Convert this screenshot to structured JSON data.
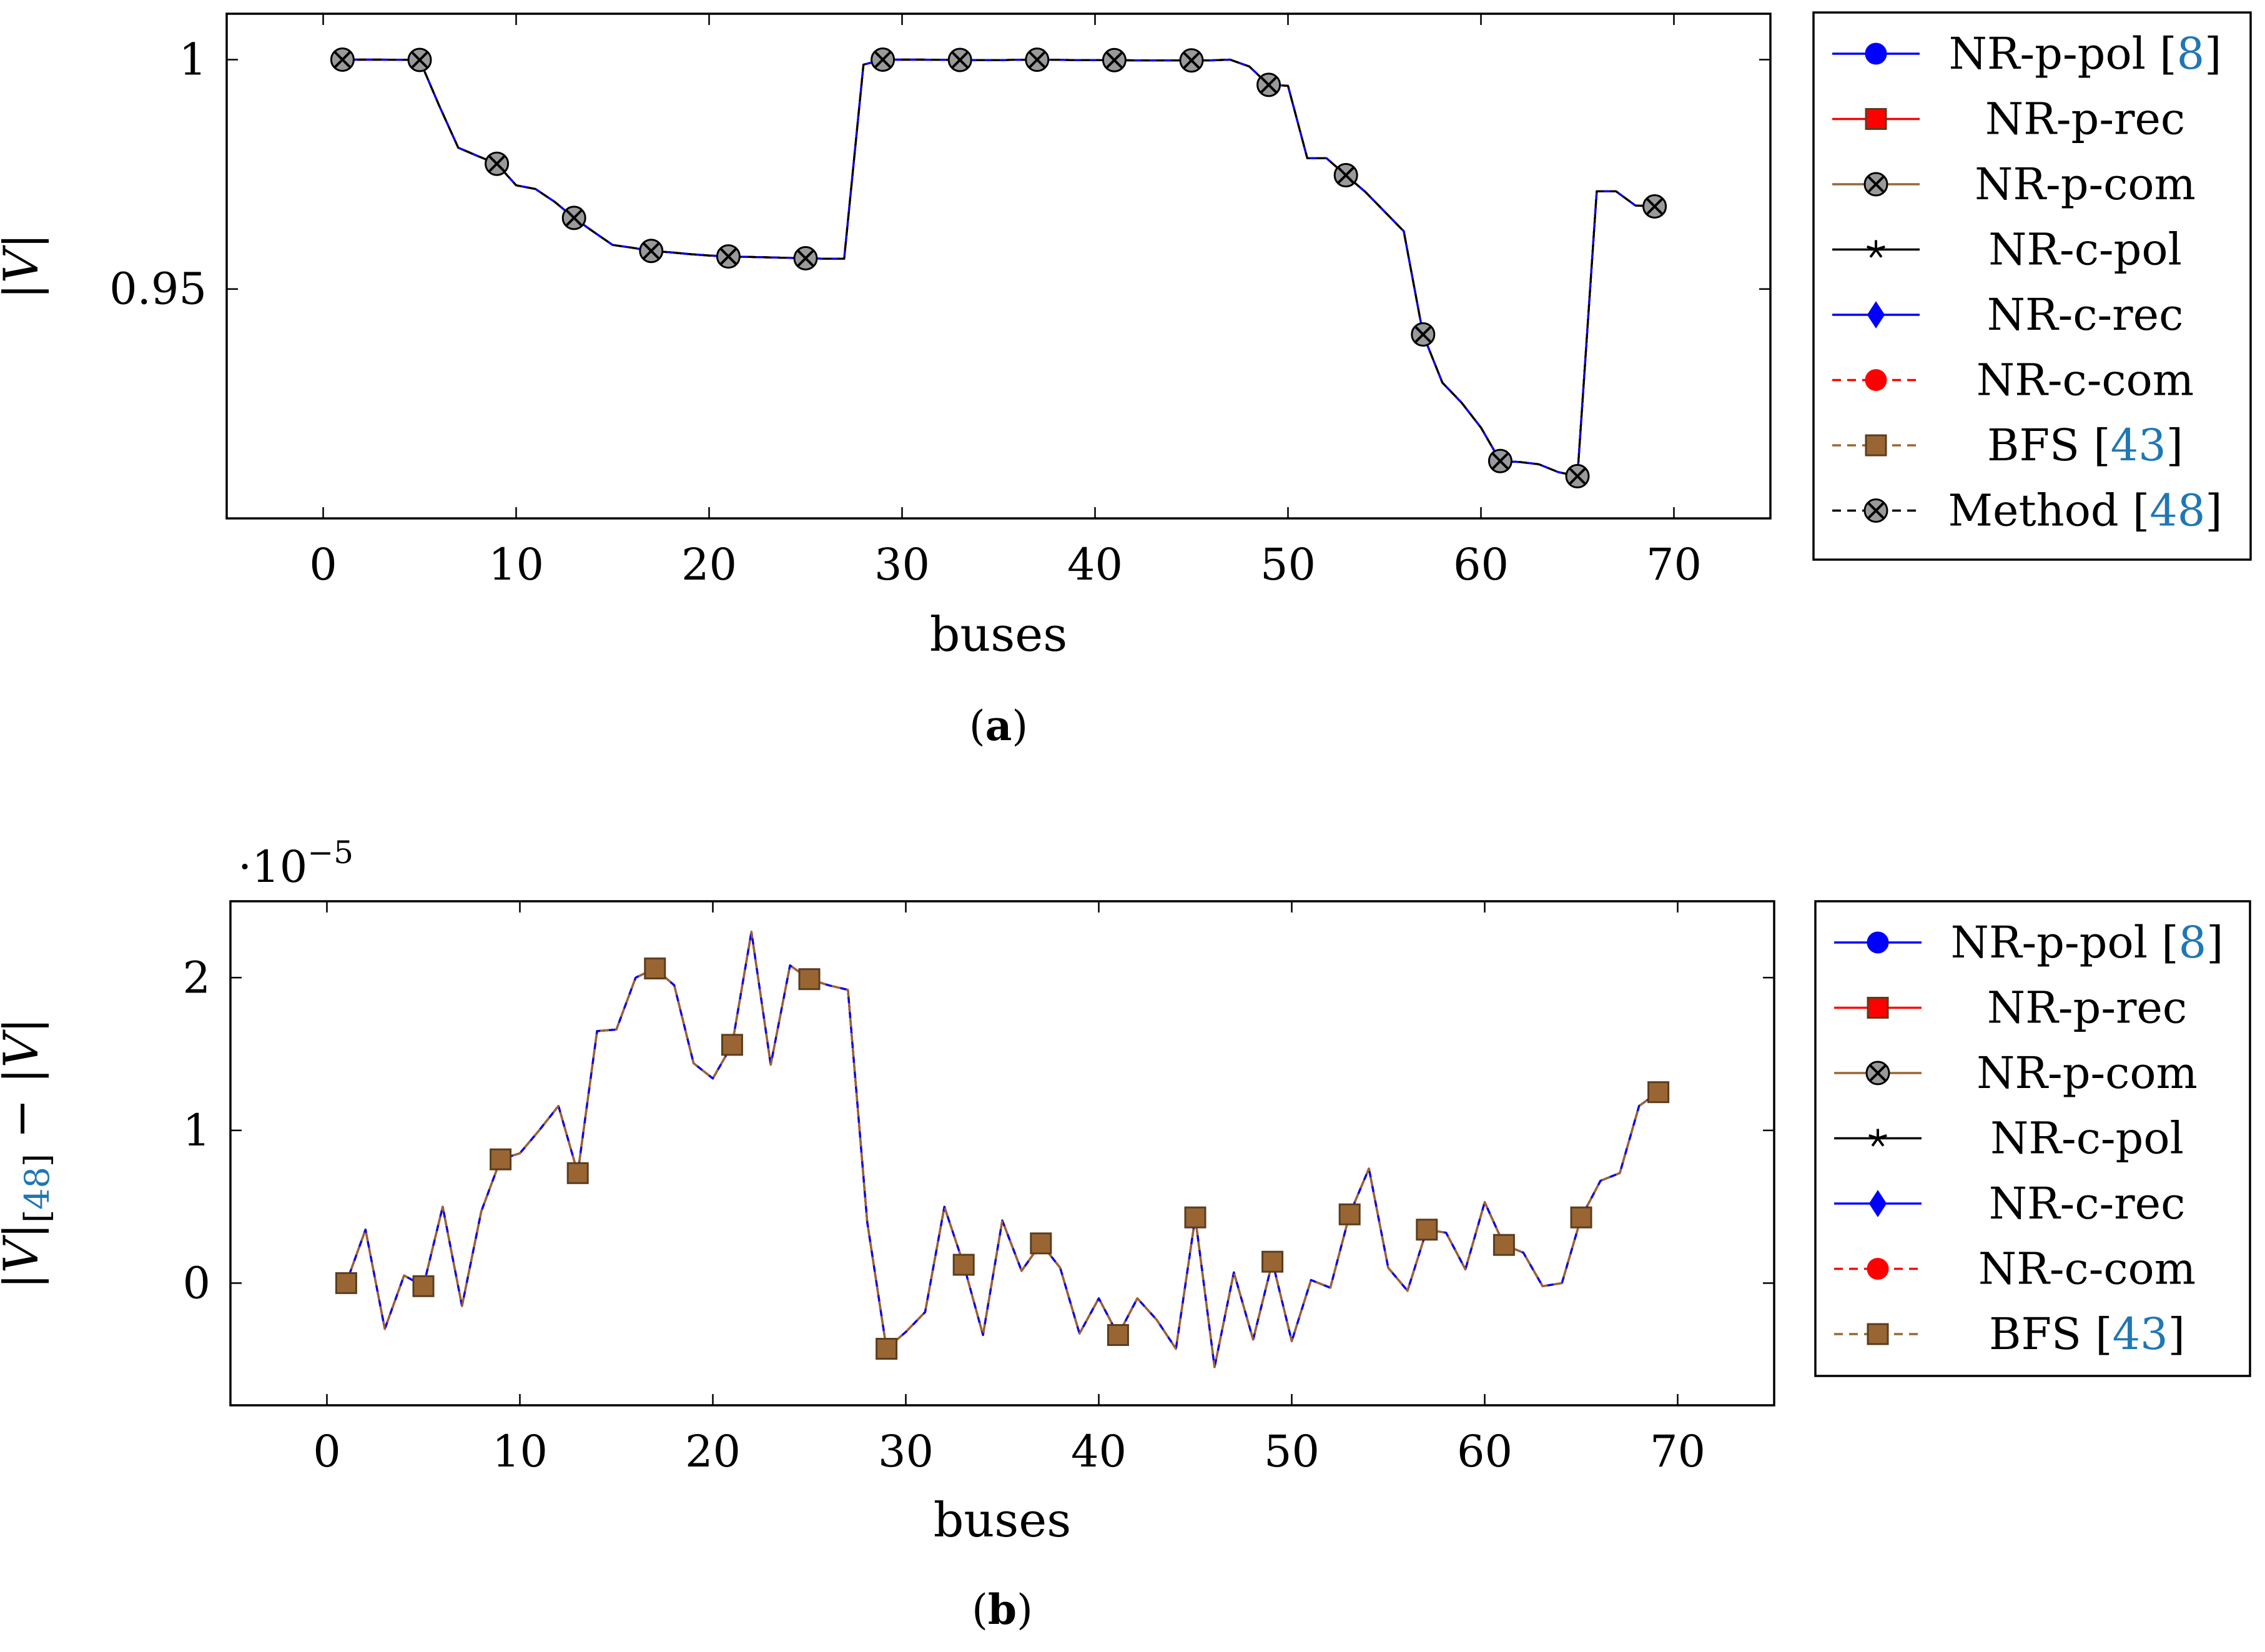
{
  "chart_data": [
    {
      "type": "line",
      "panel": "a",
      "caption_letter": "a",
      "xlabel": "buses",
      "ylabel": "|V|",
      "xlim": [
        -5,
        75
      ],
      "ylim": [
        0.9,
        1.01
      ],
      "xticks": [
        0,
        10,
        20,
        30,
        40,
        50,
        60,
        70
      ],
      "yticks": [
        0.95,
        1
      ],
      "ytick_labels": [
        "0.95",
        "1"
      ],
      "grid": false,
      "legend_position": "outside-right",
      "x": [
        1,
        2,
        3,
        4,
        5,
        6,
        7,
        8,
        9,
        10,
        11,
        12,
        13,
        14,
        15,
        16,
        17,
        18,
        19,
        20,
        21,
        22,
        23,
        24,
        25,
        26,
        27,
        28,
        29,
        30,
        31,
        32,
        33,
        34,
        35,
        36,
        37,
        38,
        39,
        40,
        41,
        42,
        43,
        44,
        45,
        46,
        47,
        48,
        49,
        50,
        51,
        52,
        53,
        54,
        55,
        56,
        57,
        58,
        59,
        60,
        61,
        62,
        63,
        64,
        65,
        66,
        67,
        68,
        69
      ],
      "y": [
        1.0,
        1.0,
        1.0,
        0.99997,
        0.99993,
        0.9901,
        0.9808,
        0.979,
        0.9773,
        0.9726,
        0.9718,
        0.969,
        0.9655,
        0.9625,
        0.9596,
        0.959,
        0.9583,
        0.958,
        0.9576,
        0.9573,
        0.9571,
        0.957,
        0.9569,
        0.9568,
        0.9567,
        0.9566,
        0.9566,
        0.9989,
        1.0,
        1.0,
        1.0,
        0.99995,
        0.99993,
        0.9999,
        0.99988,
        0.99996,
        0.99998,
        0.99995,
        0.9999,
        0.9999,
        0.99989,
        0.99985,
        0.99983,
        0.99983,
        0.99983,
        0.99984,
        1.0,
        0.9985,
        0.9945,
        0.9943,
        0.9785,
        0.9785,
        0.9748,
        0.9712,
        0.9669,
        0.9626,
        0.9401,
        0.9296,
        0.9252,
        0.9198,
        0.9125,
        0.9123,
        0.9118,
        0.9101,
        0.9092,
        0.9713,
        0.9713,
        0.9682,
        0.968
      ],
      "series": [
        {
          "name": "NR-p-pol",
          "ref": "8",
          "color": "#0000ff",
          "dash": "solid",
          "marker": "circle"
        },
        {
          "name": "NR-p-rec",
          "ref": "",
          "color": "#ff0000",
          "dash": "solid",
          "marker": "square"
        },
        {
          "name": "NR-p-com",
          "ref": "",
          "color": "#996633",
          "dash": "solid",
          "marker": "otimes"
        },
        {
          "name": "NR-c-pol",
          "ref": "",
          "color": "#000000",
          "dash": "solid",
          "marker": "star"
        },
        {
          "name": "NR-c-rec",
          "ref": "",
          "color": "#0000ff",
          "dash": "solid",
          "marker": "diamond"
        },
        {
          "name": "NR-c-com",
          "ref": "",
          "color": "#ff0000",
          "dash": "dashed",
          "marker": "circle"
        },
        {
          "name": "BFS",
          "ref": "43",
          "color": "#996633",
          "dash": "dashed",
          "marker": "square"
        },
        {
          "name": "Method",
          "ref": "48",
          "color": "#000000",
          "dash": "dashed",
          "marker": "otimes"
        }
      ],
      "marker_every": 4
    },
    {
      "type": "line",
      "panel": "b",
      "caption_letter": "b",
      "xlabel": "buses",
      "ylabel": "|V|[48] − |V|",
      "ylabel_parts": {
        "pre": "|V|",
        "sub_open": "[",
        "sub_ref": "48",
        "sub_close": "]",
        "post": " − |V|"
      },
      "scale_text": "·10",
      "scale_exp": "−5",
      "xlim": [
        -5,
        75
      ],
      "ylim": [
        -0.8,
        2.5
      ],
      "xticks": [
        0,
        10,
        20,
        30,
        40,
        50,
        60,
        70
      ],
      "yticks": [
        0,
        1,
        2
      ],
      "ytick_labels": [
        "0",
        "1",
        "2"
      ],
      "grid": false,
      "legend_position": "outside-right",
      "x": [
        1,
        2,
        3,
        4,
        5,
        6,
        7,
        8,
        9,
        10,
        11,
        12,
        13,
        14,
        15,
        16,
        17,
        18,
        19,
        20,
        21,
        22,
        23,
        24,
        25,
        26,
        27,
        28,
        29,
        30,
        31,
        32,
        33,
        34,
        35,
        36,
        37,
        38,
        39,
        40,
        41,
        42,
        43,
        44,
        45,
        46,
        47,
        48,
        49,
        50,
        51,
        52,
        53,
        54,
        55,
        56,
        57,
        58,
        59,
        60,
        61,
        62,
        63,
        64,
        65,
        66,
        67,
        68,
        69
      ],
      "y": [
        0.0,
        0.35,
        -0.3,
        0.05,
        -0.02,
        0.5,
        -0.15,
        0.47,
        0.81,
        0.85,
        1.0,
        1.16,
        0.72,
        1.65,
        1.66,
        2.0,
        2.06,
        1.95,
        1.44,
        1.34,
        1.56,
        2.3,
        1.43,
        2.08,
        1.99,
        1.95,
        1.92,
        0.4,
        -0.43,
        -0.32,
        -0.19,
        0.5,
        0.12,
        -0.34,
        0.41,
        0.08,
        0.26,
        0.1,
        -0.33,
        -0.1,
        -0.34,
        -0.1,
        -0.24,
        -0.43,
        0.43,
        -0.55,
        0.07,
        -0.37,
        0.14,
        -0.38,
        0.02,
        -0.03,
        0.45,
        0.75,
        0.1,
        -0.05,
        0.35,
        0.33,
        0.09,
        0.53,
        0.25,
        0.2,
        -0.02,
        0.0,
        0.43,
        0.67,
        0.72,
        1.16,
        1.25
      ],
      "series": [
        {
          "name": "NR-p-pol",
          "ref": "8",
          "color": "#0000ff",
          "dash": "solid",
          "marker": "circle"
        },
        {
          "name": "NR-p-rec",
          "ref": "",
          "color": "#ff0000",
          "dash": "solid",
          "marker": "square"
        },
        {
          "name": "NR-p-com",
          "ref": "",
          "color": "#996633",
          "dash": "solid",
          "marker": "otimes"
        },
        {
          "name": "NR-c-pol",
          "ref": "",
          "color": "#000000",
          "dash": "solid",
          "marker": "star"
        },
        {
          "name": "NR-c-rec",
          "ref": "",
          "color": "#0000ff",
          "dash": "solid",
          "marker": "diamond"
        },
        {
          "name": "NR-c-com",
          "ref": "",
          "color": "#ff0000",
          "dash": "dashed",
          "marker": "circle"
        },
        {
          "name": "BFS",
          "ref": "43",
          "color": "#996633",
          "dash": "dashed",
          "marker": "square"
        }
      ],
      "marker_every": 4
    }
  ]
}
